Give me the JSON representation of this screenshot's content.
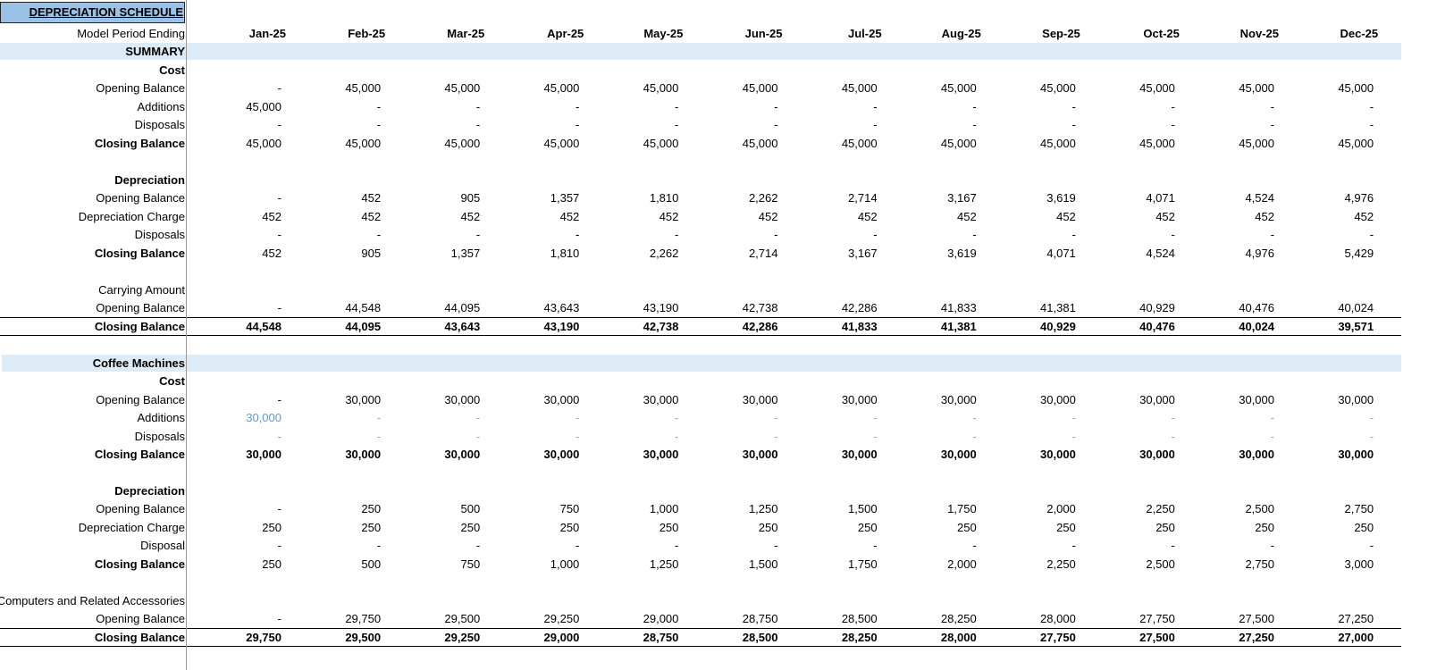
{
  "title": "DEPRECIATION SCHEDULE",
  "header": {
    "label": "Model Period Ending",
    "months": [
      "Jan-25",
      "Feb-25",
      "Mar-25",
      "Apr-25",
      "May-25",
      "Jun-25",
      "Jul-25",
      "Aug-25",
      "Sep-25",
      "Oct-25",
      "Nov-25",
      "Dec-25"
    ]
  },
  "rows": [
    {
      "label": "SUMMARY"
    },
    {
      "label": "Cost"
    },
    {
      "label": "Opening Balance",
      "values": [
        "-",
        "45,000",
        "45,000",
        "45,000",
        "45,000",
        "45,000",
        "45,000",
        "45,000",
        "45,000",
        "45,000",
        "45,000",
        "45,000"
      ]
    },
    {
      "label": "Additions",
      "values": [
        "45,000",
        "-",
        "-",
        "-",
        "-",
        "-",
        "-",
        "-",
        "-",
        "-",
        "-",
        "-"
      ]
    },
    {
      "label": "Disposals",
      "values": [
        "-",
        "-",
        "-",
        "-",
        "-",
        "-",
        "-",
        "-",
        "-",
        "-",
        "-",
        "-"
      ]
    },
    {
      "label": "Closing Balance",
      "values": [
        "45,000",
        "45,000",
        "45,000",
        "45,000",
        "45,000",
        "45,000",
        "45,000",
        "45,000",
        "45,000",
        "45,000",
        "45,000",
        "45,000"
      ]
    },
    {
      "label": "Depreciation"
    },
    {
      "label": "Opening Balance",
      "values": [
        "-",
        "452",
        "905",
        "1,357",
        "1,810",
        "2,262",
        "2,714",
        "3,167",
        "3,619",
        "4,071",
        "4,524",
        "4,976"
      ]
    },
    {
      "label": "Depreciation Charge",
      "values": [
        "452",
        "452",
        "452",
        "452",
        "452",
        "452",
        "452",
        "452",
        "452",
        "452",
        "452",
        "452"
      ]
    },
    {
      "label": "Disposals",
      "values": [
        "-",
        "-",
        "-",
        "-",
        "-",
        "-",
        "-",
        "-",
        "-",
        "-",
        "-",
        "-"
      ]
    },
    {
      "label": "Closing Balance",
      "values": [
        "452",
        "905",
        "1,357",
        "1,810",
        "2,262",
        "2,714",
        "3,167",
        "3,619",
        "4,071",
        "4,524",
        "4,976",
        "5,429"
      ]
    },
    {
      "label": "Carrying Amount"
    },
    {
      "label": "Opening Balance",
      "values": [
        "-",
        "44,548",
        "44,095",
        "43,643",
        "43,190",
        "42,738",
        "42,286",
        "41,833",
        "41,381",
        "40,929",
        "40,476",
        "40,024"
      ]
    },
    {
      "label": "Closing Balance",
      "values": [
        "44,548",
        "44,095",
        "43,643",
        "43,190",
        "42,738",
        "42,286",
        "41,833",
        "41,381",
        "40,929",
        "40,476",
        "40,024",
        "39,571"
      ]
    },
    {
      "label": "Coffee Machines"
    },
    {
      "label": "Cost"
    },
    {
      "label": "Opening Balance",
      "values": [
        "-",
        "30,000",
        "30,000",
        "30,000",
        "30,000",
        "30,000",
        "30,000",
        "30,000",
        "30,000",
        "30,000",
        "30,000",
        "30,000"
      ]
    },
    {
      "label": "Additions",
      "values": [
        "30,000",
        "-",
        "-",
        "-",
        "-",
        "-",
        "-",
        "-",
        "-",
        "-",
        "-",
        "-"
      ]
    },
    {
      "label": "Disposals",
      "values": [
        "-",
        "-",
        "-",
        "-",
        "-",
        "-",
        "-",
        "-",
        "-",
        "-",
        "-",
        "-"
      ]
    },
    {
      "label": "Closing Balance",
      "values": [
        "30,000",
        "30,000",
        "30,000",
        "30,000",
        "30,000",
        "30,000",
        "30,000",
        "30,000",
        "30,000",
        "30,000",
        "30,000",
        "30,000"
      ]
    },
    {
      "label": "Depreciation"
    },
    {
      "label": "Opening Balance",
      "values": [
        "-",
        "250",
        "500",
        "750",
        "1,000",
        "1,250",
        "1,500",
        "1,750",
        "2,000",
        "2,250",
        "2,500",
        "2,750"
      ]
    },
    {
      "label": "Depreciation Charge",
      "values": [
        "250",
        "250",
        "250",
        "250",
        "250",
        "250",
        "250",
        "250",
        "250",
        "250",
        "250",
        "250"
      ]
    },
    {
      "label": "Disposal",
      "values": [
        "-",
        "-",
        "-",
        "-",
        "-",
        "-",
        "-",
        "-",
        "-",
        "-",
        "-",
        "-"
      ]
    },
    {
      "label": "Closing Balance",
      "values": [
        "250",
        "500",
        "750",
        "1,000",
        "1,250",
        "1,500",
        "1,750",
        "2,000",
        "2,250",
        "2,500",
        "2,750",
        "3,000"
      ]
    },
    {
      "label": "Computers and Related Accessories"
    },
    {
      "label": "Opening Balance",
      "values": [
        "-",
        "29,750",
        "29,500",
        "29,250",
        "29,000",
        "28,750",
        "28,500",
        "28,250",
        "28,000",
        "27,750",
        "27,500",
        "27,250"
      ]
    },
    {
      "label": "Closing Balance",
      "values": [
        "29,750",
        "29,500",
        "29,250",
        "29,000",
        "28,750",
        "28,500",
        "28,250",
        "28,000",
        "27,750",
        "27,500",
        "27,250",
        "27,000"
      ]
    }
  ]
}
